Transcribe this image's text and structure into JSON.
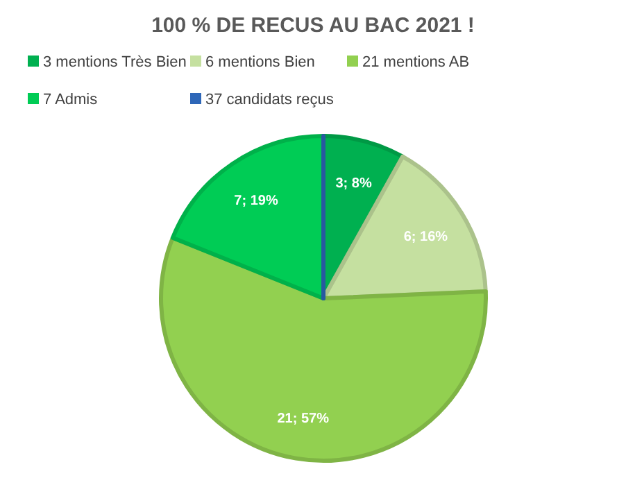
{
  "chart_data": {
    "type": "pie",
    "title": "100 % DE RECUS AU BAC 2021 !",
    "categories": [
      "3 mentions Très Bien",
      "6 mentions Bien",
      "21 mentions AB",
      "7 Admis",
      "37 candidats reçus"
    ],
    "values": [
      3,
      6,
      21,
      7,
      0
    ],
    "colors": [
      "#00b050",
      "#c5e0a0",
      "#92d050",
      "#00cc55",
      "#2e67b8"
    ],
    "value_labels": [
      "3; 8%",
      "6; 16%",
      "21; 57%",
      "7; 19%",
      null
    ],
    "legend": "top"
  }
}
